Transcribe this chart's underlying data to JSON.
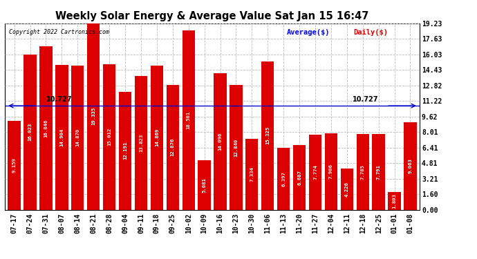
{
  "title": "Weekly Solar Energy & Average Value Sat Jan 15 16:47",
  "copyright": "Copyright 2022 Cartronics.com",
  "legend_avg": "Average($)",
  "legend_daily": "Daily($)",
  "average_line": 10.727,
  "average_label": "10.727",
  "categories": [
    "07-17",
    "07-24",
    "07-31",
    "08-07",
    "08-14",
    "08-21",
    "08-28",
    "09-04",
    "09-11",
    "09-18",
    "09-25",
    "10-02",
    "10-09",
    "10-16",
    "10-23",
    "10-30",
    "11-06",
    "11-13",
    "11-20",
    "11-27",
    "12-04",
    "12-11",
    "12-18",
    "12-25",
    "01-01",
    "01-08"
  ],
  "values": [
    9.159,
    16.023,
    16.846,
    14.904,
    14.87,
    19.335,
    15.012,
    12.191,
    13.823,
    14.869,
    12.876,
    18.501,
    5.081,
    14.096,
    12.84,
    7.334,
    15.325,
    6.397,
    6.687,
    7.774,
    7.906,
    4.226,
    7.785,
    7.791,
    1.803,
    9.063
  ],
  "bar_color": "#dd0000",
  "avg_line_color": "#0000cc",
  "avg_label_color": "#000000",
  "title_color": "#000000",
  "copyright_color": "#000000",
  "legend_avg_color": "#0000ff",
  "legend_daily_color": "#dd0000",
  "yticks": [
    0.0,
    1.6,
    3.21,
    4.81,
    6.41,
    8.01,
    9.62,
    11.22,
    12.82,
    14.43,
    16.03,
    17.63,
    19.23
  ],
  "ymax": 19.23,
  "ymin": 0.0,
  "background_color": "#ffffff",
  "grid_color": "#bbbbbb",
  "value_fontsize": 5.2,
  "label_fontsize": 7.0,
  "title_fontsize": 10.5
}
